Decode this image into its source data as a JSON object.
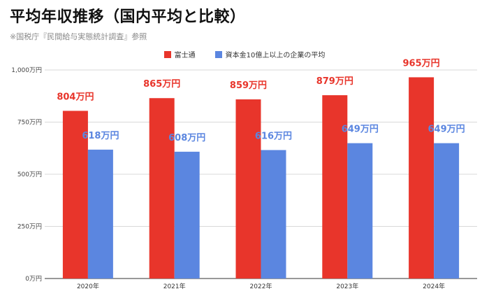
{
  "header": {
    "title": "平均年収推移（国内平均と比較）",
    "subtitle": "※国税庁『民間給与実態統計調査』参照"
  },
  "chart_data": {
    "type": "bar",
    "categories": [
      "2020年",
      "2021年",
      "2022年",
      "2023年",
      "2024年"
    ],
    "series": [
      {
        "name": "富士通",
        "color": "#e8352b",
        "values": [
          804,
          865,
          859,
          879,
          965
        ]
      },
      {
        "name": "資本金10億上以上の企業の平均",
        "color": "#5b86e0",
        "values": [
          618,
          608,
          616,
          649,
          649
        ]
      }
    ],
    "data_labels": [
      [
        "804万円",
        "865万円",
        "859万円",
        "879万円",
        "965万円"
      ],
      [
        "618万円",
        "608万円",
        "616万円",
        "649万円",
        "649万円"
      ]
    ],
    "y_ticks": [
      0,
      250,
      500,
      750,
      1000
    ],
    "y_tick_labels": [
      "0万円",
      "250万円",
      "500万円",
      "750万円",
      "1,000万円"
    ],
    "ylim": [
      0,
      1000
    ],
    "grid": true,
    "legend_position": "top-center"
  }
}
